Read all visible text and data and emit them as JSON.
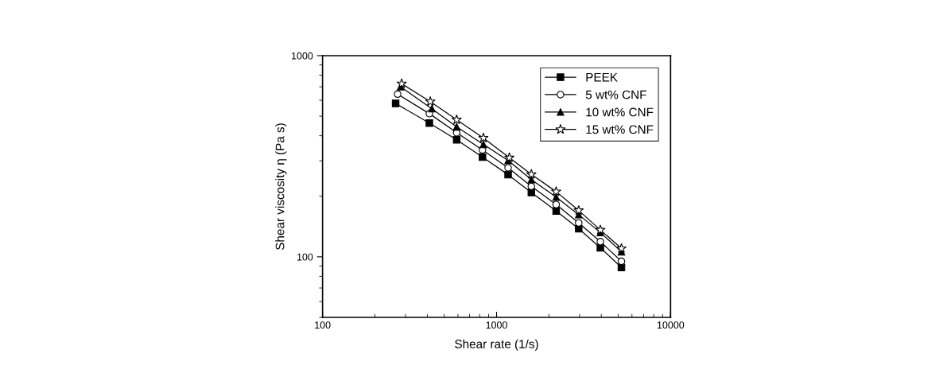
{
  "chart_data": {
    "type": "line",
    "xlabel": "Shear rate (1/s)",
    "ylabel": "Shear viscosity η (Pa s)",
    "log": "xy",
    "xlim": [
      100,
      10000
    ],
    "xticks": [
      100,
      1000,
      10000
    ],
    "ylim": [
      50,
      1000
    ],
    "yticks": [
      100,
      1000
    ],
    "grid": false,
    "legend": "top right",
    "line_style": "solid",
    "series": [
      {
        "name": "PEEK",
        "color": "#000000",
        "marker": "square",
        "x": [
          263,
          411,
          590,
          830,
          1165,
          1585,
          2200,
          2965,
          3950,
          5220
        ],
        "values": [
          579,
          462,
          382,
          313,
          256,
          209,
          169,
          138,
          111,
          88.5
        ]
      },
      {
        "name": "5 wt% CNF",
        "color": "#000000",
        "marker": "circle",
        "x": [
          270,
          411,
          590,
          830,
          1165,
          1585,
          2200,
          2965,
          3950,
          5220
        ],
        "values": [
          644,
          515,
          414,
          340,
          277,
          224,
          182,
          147.5,
          119,
          95
        ]
      },
      {
        "name": "10 wt% CNF",
        "color": "#000000",
        "marker": "triangle",
        "x": [
          281,
          425,
          590,
          840,
          1165,
          1585,
          2200,
          2965,
          3950,
          5220
        ],
        "values": [
          701,
          545,
          443,
          362,
          301,
          242,
          198,
          162,
          132,
          106
        ]
      },
      {
        "name": "15 wt% CNF",
        "color": "#000000",
        "marker": "star",
        "x": [
          285,
          416,
          590,
          840,
          1185,
          1585,
          2200,
          2965,
          3950,
          5220
        ],
        "values": [
          726,
          591,
          480,
          390,
          311,
          257,
          211,
          170,
          136,
          110
        ]
      }
    ]
  }
}
